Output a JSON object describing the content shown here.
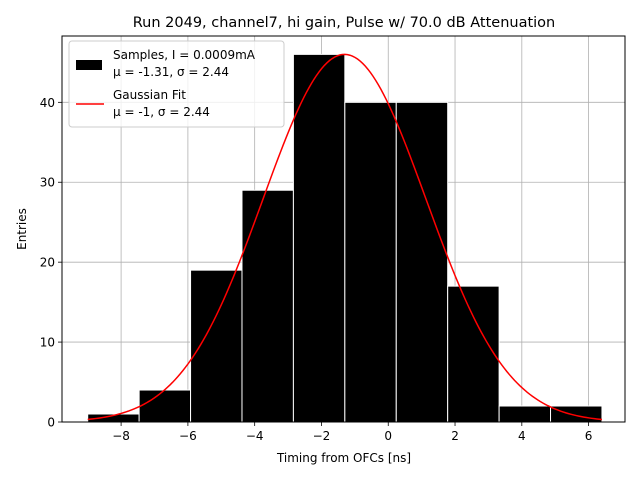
{
  "chart_data": {
    "type": "bar",
    "title": "Run 2049, channel7, hi gain, Pulse w/ 70.0 dB Attenuation",
    "xlabel": "Timing from OFCs [ns]",
    "ylabel": "Entries",
    "xlim": [
      -9.77,
      7.09
    ],
    "ylim": [
      0,
      48.3
    ],
    "xticks": [
      -8,
      -6,
      -4,
      -2,
      0,
      2,
      4,
      6
    ],
    "xtick_labels": [
      "−8",
      "−6",
      "−4",
      "−2",
      "0",
      "2",
      "4",
      "6"
    ],
    "yticks": [
      0,
      10,
      20,
      30,
      40
    ],
    "ytick_labels": [
      "0",
      "10",
      "20",
      "30",
      "40"
    ],
    "grid": true,
    "legend_position": "top-left",
    "histogram": {
      "name": "Samples, I = 0.0009mA",
      "name_line2": "μ = -1.31, σ = 2.44",
      "color": "#000000",
      "edgecolor": "#ffffff",
      "bin_edges": [
        -9.0,
        -7.46,
        -5.92,
        -4.38,
        -2.84,
        -1.3,
        0.24,
        1.78,
        3.32,
        4.86,
        6.4
      ],
      "counts": [
        1,
        4,
        19,
        29,
        46,
        40,
        40,
        17,
        2,
        2
      ]
    },
    "fit": {
      "name": "Gaussian Fit",
      "name_line2": "μ = -1, σ = 2.44",
      "color": "#ff0000",
      "mu": -1.31,
      "sigma": 2.44,
      "amplitude": 46,
      "x_range": [
        -9.0,
        6.4
      ]
    }
  }
}
